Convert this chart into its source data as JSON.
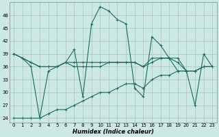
{
  "xlabel": "Humidex (Indice chaleur)",
  "background_color": "#cce8e4",
  "grid_color": "#b0c8c4",
  "line_color": "#1a6b5a",
  "xlim": [
    -0.5,
    23.5
  ],
  "ylim": [
    23,
    51
  ],
  "yticks": [
    24,
    27,
    30,
    33,
    36,
    39,
    42,
    45,
    48
  ],
  "xticks": [
    0,
    1,
    2,
    3,
    4,
    5,
    6,
    7,
    8,
    9,
    10,
    11,
    12,
    13,
    14,
    15,
    16,
    17,
    18,
    19,
    20,
    21,
    22,
    23
  ],
  "series": [
    [
      39,
      38,
      36,
      24,
      35,
      36,
      37,
      40,
      29,
      46,
      50,
      49,
      47,
      46,
      31,
      29,
      43,
      41,
      38,
      38,
      35,
      27,
      39,
      36
    ],
    [
      39,
      38,
      37,
      36,
      36,
      36,
      37,
      37,
      37,
      37,
      37,
      37,
      37,
      37,
      37,
      36,
      37,
      38,
      38,
      37,
      35,
      35,
      36,
      36
    ],
    [
      39,
      38,
      37,
      36,
      36,
      36,
      37,
      36,
      36,
      36,
      36,
      37,
      37,
      37,
      37,
      36,
      38,
      38,
      38,
      35,
      35,
      35,
      36,
      36
    ],
    [
      24,
      24,
      24,
      24,
      25,
      26,
      26,
      27,
      28,
      29,
      30,
      30,
      31,
      32,
      32,
      31,
      33,
      34,
      34,
      35,
      35,
      35,
      36,
      36
    ]
  ]
}
